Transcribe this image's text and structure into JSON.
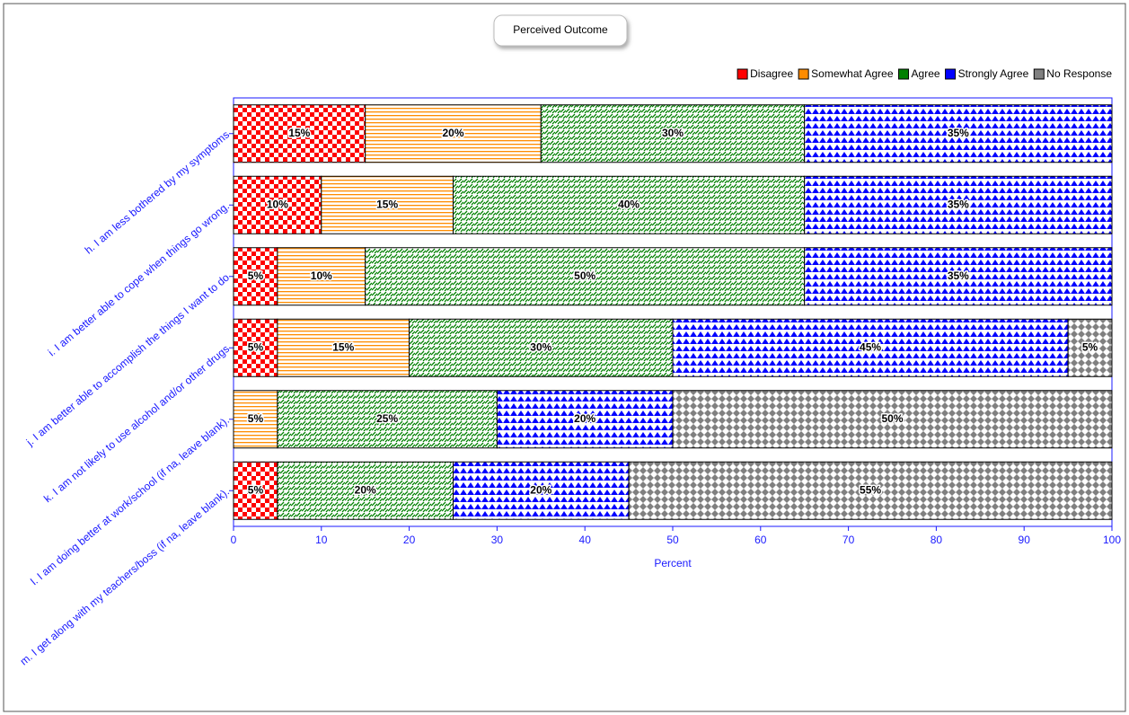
{
  "chart_data": {
    "type": "stacked_barh",
    "title": "Perceived Outcome",
    "categories": [
      "h. I am less bothered by my symptoms",
      "i. I am better able to cope when things go wrong.",
      "j. I am better able to accomplish the things I want to do",
      "k. I am not likely to use alcohol and/or other drugs",
      "l. I am doing better at work/school (if na, leave blank).",
      "m. I get along with my teachers/boss (if na, leave blank)."
    ],
    "series": [
      {
        "name": "Disagree",
        "color": "#ff0000",
        "values": [
          15,
          10,
          5,
          5,
          0,
          5
        ],
        "value_labels": [
          "15%",
          "10%",
          "5%",
          "5%",
          null,
          "5%"
        ]
      },
      {
        "name": "Somewhat Agree",
        "color": "#ff8c00",
        "values": [
          20,
          15,
          10,
          15,
          5,
          0
        ],
        "value_labels": [
          "20%",
          "15%",
          "10%",
          "15%",
          "5%",
          null
        ]
      },
      {
        "name": "Agree",
        "color": "#008000",
        "values": [
          30,
          40,
          50,
          30,
          25,
          20
        ],
        "value_labels": [
          "30%",
          "40%",
          "50%",
          "30%",
          "25%",
          "20%"
        ]
      },
      {
        "name": "Strongly Agree",
        "color": "#0000ff",
        "values": [
          35,
          35,
          35,
          45,
          20,
          20
        ],
        "value_labels": [
          "35%",
          "35%",
          "35%",
          "45%",
          "20%",
          "20%"
        ]
      },
      {
        "name": "No Response",
        "color": "#808080",
        "values": [
          0,
          0,
          0,
          5,
          50,
          55
        ],
        "value_labels": [
          null,
          null,
          null,
          "5%",
          "50%",
          "55%"
        ]
      }
    ],
    "xlabel": "Percent",
    "xlim": [
      0,
      100
    ],
    "xticks": [
      0,
      10,
      20,
      30,
      40,
      50,
      60,
      70,
      80,
      90,
      100
    ],
    "legend": "top-right"
  }
}
